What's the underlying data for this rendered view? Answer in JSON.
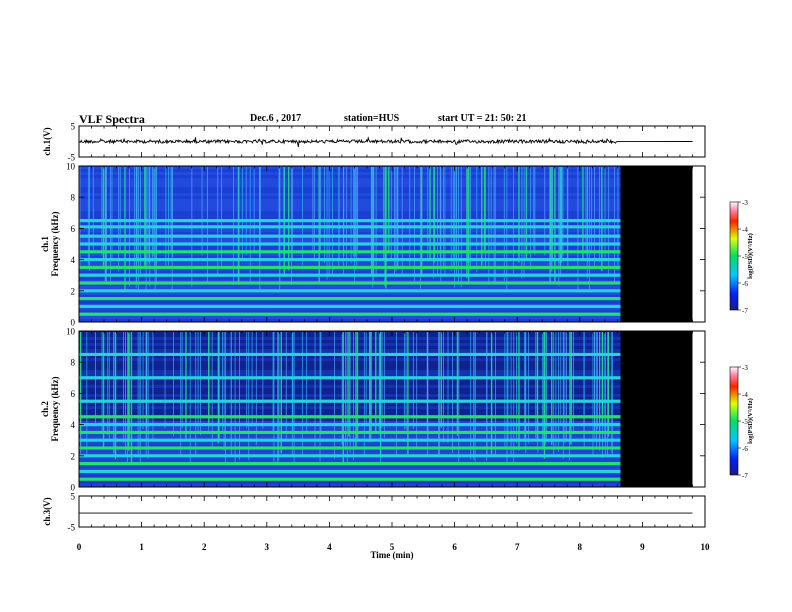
{
  "header": {
    "title": "VLF Spectra",
    "date": "Dec.6 , 2017",
    "station": "station=HUS",
    "start": "start UT = 21: 50: 21"
  },
  "chart_data": [
    {
      "type": "line",
      "panel": "ch1-waveform",
      "ylabel": "ch.1(V)",
      "ylim": [
        -5,
        5
      ],
      "yticks": [
        5,
        -5
      ],
      "xlim": [
        0,
        10
      ],
      "data_end_min": 9.8,
      "signal_end_min": 8.6,
      "description_level": 0
    },
    {
      "type": "heatmap",
      "panel": "ch1-spectrogram",
      "ylabel": "ch.1",
      "ylabel2": "Frequency (kHz)",
      "ylim": [
        0,
        10
      ],
      "yticks": [
        0,
        2,
        4,
        6,
        8,
        10
      ],
      "xlim": [
        0,
        10
      ],
      "data_end_min": 8.65,
      "no_data_until_min": 9.8,
      "bands_khz": [
        0.5,
        1.0,
        1.5,
        2.0,
        2.5,
        3.0,
        3.5,
        4.0,
        4.5,
        5.0,
        5.5,
        6.1,
        6.5
      ],
      "colorbar": {
        "label": "log(PSD)(V²/Hz)",
        "ticks": [
          -3,
          -4,
          -5,
          -6,
          -7
        ]
      }
    },
    {
      "type": "heatmap",
      "panel": "ch2-spectrogram",
      "ylabel": "ch.2",
      "ylabel2": "Frequency (kHz)",
      "ylim": [
        0,
        10
      ],
      "yticks": [
        0,
        2,
        4,
        6,
        8,
        10
      ],
      "xlim": [
        0,
        10
      ],
      "data_end_min": 8.65,
      "no_data_until_min": 9.8,
      "bands_khz": [
        0.5,
        1.0,
        1.5,
        2.0,
        2.5,
        3.0,
        3.5,
        4.0,
        4.5,
        5.5,
        7.0,
        8.5
      ],
      "colorbar": {
        "label": "log(PSD)(V²/Hz)",
        "ticks": [
          -3,
          -4,
          -5,
          -6,
          -7
        ]
      }
    },
    {
      "type": "line",
      "panel": "ch3-waveform",
      "ylabel": "ch.3(V)",
      "ylim": [
        -5,
        5
      ],
      "yticks": [
        5,
        -5
      ],
      "xlim": [
        0,
        10
      ],
      "data_end_min": 9.8,
      "level": -0.5
    }
  ],
  "xaxis": {
    "label": "Time (min)",
    "ticks": [
      "0",
      "1",
      "2",
      "3",
      "4",
      "5",
      "6",
      "7",
      "8",
      "9",
      "10"
    ]
  },
  "colors": {
    "background": "#ffffff",
    "no_data": "#000000",
    "trace": "#000000"
  }
}
